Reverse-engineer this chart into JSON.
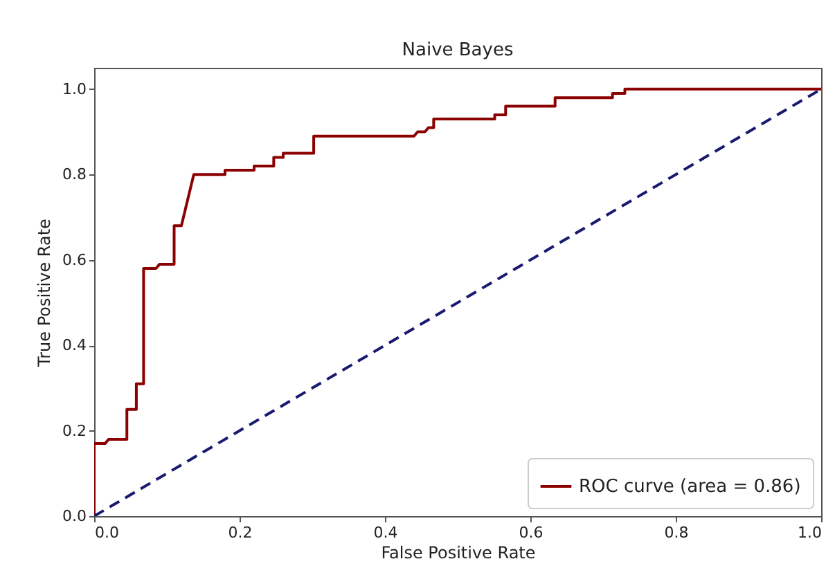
{
  "chart_data": {
    "type": "line",
    "title": "Naive Bayes",
    "xlabel": "False Positive Rate",
    "ylabel": "True Positive Rate",
    "xlim": [
      0,
      1
    ],
    "ylim": [
      0,
      1.05
    ],
    "xticks": [
      {
        "value": 0,
        "label": "0.0"
      },
      {
        "value": 0.2,
        "label": "0.2"
      },
      {
        "value": 0.4,
        "label": "0.4"
      },
      {
        "value": 0.6,
        "label": "0.6"
      },
      {
        "value": 0.8,
        "label": "0.8"
      },
      {
        "value": 1,
        "label": "1.0"
      }
    ],
    "yticks": [
      {
        "value": 0,
        "label": "0.0"
      },
      {
        "value": 0.2,
        "label": "0.2"
      },
      {
        "value": 0.4,
        "label": "0.4"
      },
      {
        "value": 0.6,
        "label": "0.6"
      },
      {
        "value": 0.8,
        "label": "0.8"
      },
      {
        "value": 1,
        "label": "1.0"
      }
    ],
    "legend": "bottom right",
    "grid": false,
    "series": [
      {
        "name": "ROC curve (area = 0.86)",
        "color": "#8b0000",
        "line_style": "solid",
        "x": [
          0,
          0,
          0.015,
          0.02,
          0.045,
          0.045,
          0.058,
          0.058,
          0.068,
          0.068,
          0.085,
          0.09,
          0.11,
          0.11,
          0.12,
          0.137,
          0.18,
          0.18,
          0.22,
          0.22,
          0.247,
          0.247,
          0.26,
          0.26,
          0.302,
          0.302,
          0.44,
          0.445,
          0.455,
          0.46,
          0.467,
          0.467,
          0.551,
          0.551,
          0.566,
          0.566,
          0.634,
          0.634,
          0.713,
          0.713,
          0.73,
          0.73,
          1
        ],
        "values": [
          0,
          0.17,
          0.17,
          0.18,
          0.18,
          0.25,
          0.25,
          0.31,
          0.31,
          0.58,
          0.58,
          0.59,
          0.59,
          0.68,
          0.68,
          0.8,
          0.8,
          0.81,
          0.81,
          0.82,
          0.82,
          0.84,
          0.84,
          0.85,
          0.85,
          0.89,
          0.89,
          0.9,
          0.9,
          0.91,
          0.91,
          0.93,
          0.93,
          0.94,
          0.94,
          0.96,
          0.96,
          0.98,
          0.98,
          0.99,
          0.99,
          1,
          1
        ]
      },
      {
        "color": "#191970",
        "line_style": "dashed",
        "x": [
          0,
          1
        ],
        "values": [
          0,
          1
        ]
      }
    ]
  }
}
